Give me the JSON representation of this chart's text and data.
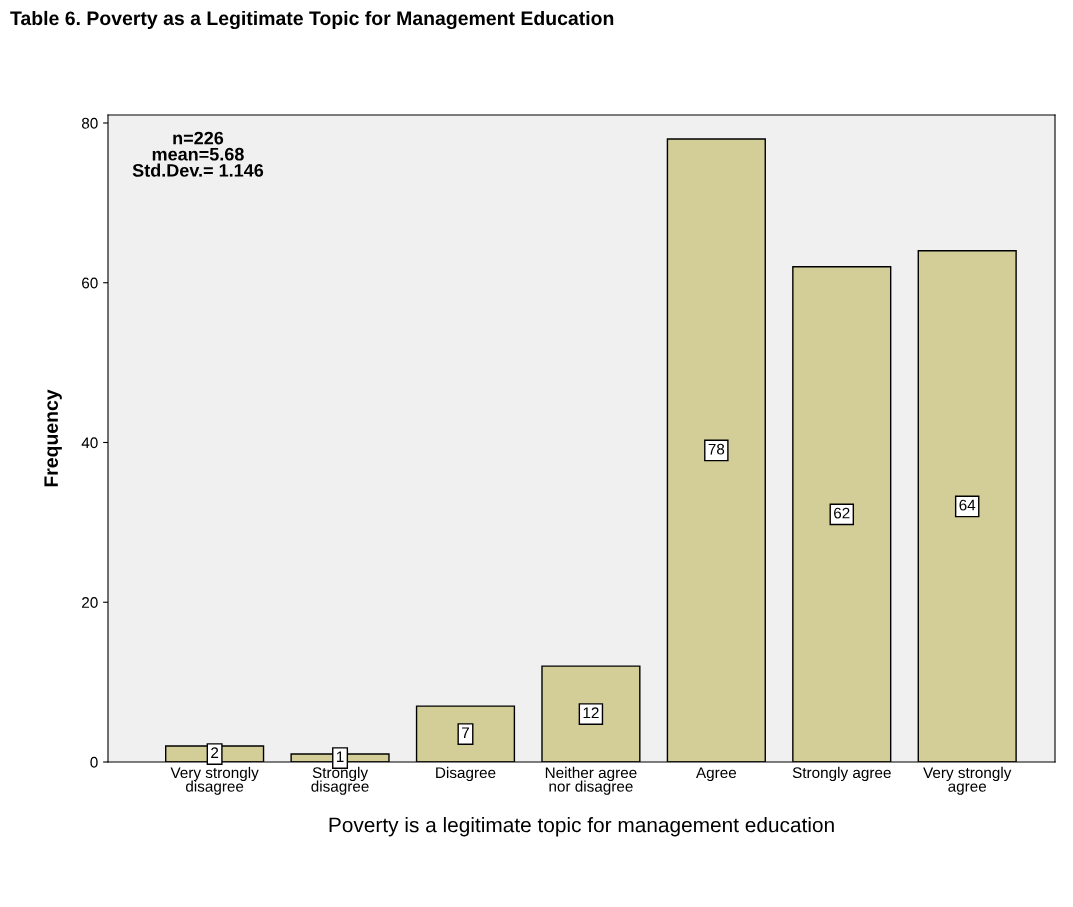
{
  "chart_data": {
    "type": "bar",
    "title": "Table 6. Poverty as a Legitimate Topic for Management Education",
    "xlabel": "Poverty is a legitimate topic for management education",
    "ylabel": "Frequency",
    "categories": [
      "Very strongly\ndisagree",
      "Strongly\ndisagree",
      "Disagree",
      "Neither agree\nnor disagree",
      "Agree",
      "Strongly agree",
      "Very strongly\nagree"
    ],
    "values": [
      2,
      1,
      7,
      12,
      78,
      62,
      64
    ],
    "color": "#d3ce97",
    "ylim": [
      0,
      81
    ],
    "yticks": [
      0,
      20,
      40,
      60,
      80
    ],
    "data_labels": true,
    "grid": false,
    "annotations": [
      "n=226\nmean=5.68\nStd.Dev.= 1.146"
    ]
  }
}
